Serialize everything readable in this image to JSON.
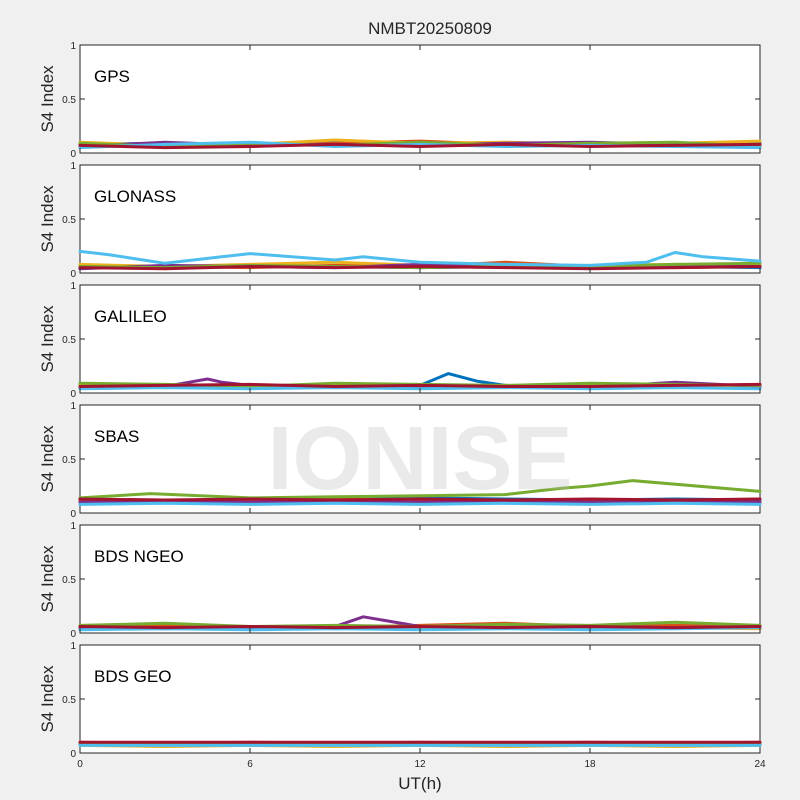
{
  "figure": {
    "title": "NMBT20250809",
    "xlabel": "UT(h)",
    "ylabel": "S4 Index",
    "watermark": "IONISE"
  },
  "colors": [
    "#0072BD",
    "#D95319",
    "#EDB120",
    "#7E2F8E",
    "#77AC30",
    "#4DBEEE",
    "#A2142F"
  ],
  "chart_data": [
    {
      "type": "line",
      "label": "GPS",
      "xlim": [
        0,
        24
      ],
      "ylim": [
        0,
        1
      ],
      "xticks": [
        0,
        6,
        12,
        18,
        24
      ],
      "yticks": [
        0,
        0.5,
        1
      ],
      "series": [
        {
          "x": [
            0,
            3,
            6,
            9,
            12,
            15,
            18,
            21,
            24
          ],
          "y": [
            0.08,
            0.09,
            0.07,
            0.1,
            0.08,
            0.09,
            0.07,
            0.08,
            0.09
          ]
        },
        {
          "x": [
            0,
            3,
            6,
            9,
            12,
            15,
            18,
            21,
            24
          ],
          "y": [
            0.07,
            0.08,
            0.06,
            0.09,
            0.11,
            0.08,
            0.09,
            0.07,
            0.08
          ]
        },
        {
          "x": [
            0,
            3,
            6,
            9,
            12,
            15,
            18,
            21,
            24
          ],
          "y": [
            0.1,
            0.07,
            0.08,
            0.12,
            0.09,
            0.1,
            0.08,
            0.09,
            0.11
          ]
        },
        {
          "x": [
            0,
            3,
            6,
            9,
            12,
            15,
            18,
            21,
            24
          ],
          "y": [
            0.06,
            0.1,
            0.07,
            0.08,
            0.07,
            0.09,
            0.1,
            0.08,
            0.07
          ]
        },
        {
          "x": [
            0,
            3,
            6,
            9,
            12,
            15,
            18,
            21,
            24
          ],
          "y": [
            0.09,
            0.06,
            0.09,
            0.07,
            0.1,
            0.07,
            0.09,
            0.1,
            0.06
          ]
        },
        {
          "x": [
            0,
            3,
            6,
            9,
            12,
            15,
            18,
            21,
            24
          ],
          "y": [
            0.05,
            0.08,
            0.1,
            0.06,
            0.08,
            0.06,
            0.07,
            0.06,
            0.05
          ]
        },
        {
          "x": [
            0,
            3,
            6,
            9,
            12,
            15,
            18,
            21,
            24
          ],
          "y": [
            0.07,
            0.05,
            0.06,
            0.08,
            0.06,
            0.08,
            0.06,
            0.07,
            0.08
          ]
        }
      ]
    },
    {
      "type": "line",
      "label": "GLONASS",
      "xlim": [
        0,
        24
      ],
      "ylim": [
        0,
        1
      ],
      "xticks": [
        0,
        6,
        12,
        18,
        24
      ],
      "yticks": [
        0,
        0.5,
        1
      ],
      "series": [
        {
          "x": [
            0,
            3,
            6,
            9,
            12,
            15,
            18,
            21,
            24
          ],
          "y": [
            0.06,
            0.05,
            0.07,
            0.06,
            0.05,
            0.06,
            0.05,
            0.06,
            0.05
          ]
        },
        {
          "x": [
            0,
            3,
            6,
            9,
            12,
            15,
            18,
            21,
            24
          ],
          "y": [
            0.05,
            0.06,
            0.05,
            0.07,
            0.06,
            0.1,
            0.06,
            0.05,
            0.06
          ]
        },
        {
          "x": [
            0,
            3,
            6,
            9,
            12,
            15,
            18,
            21,
            24
          ],
          "y": [
            0.08,
            0.06,
            0.08,
            0.1,
            0.07,
            0.06,
            0.07,
            0.08,
            0.07
          ]
        },
        {
          "x": [
            0,
            3,
            6,
            9,
            12,
            15,
            18,
            21,
            24
          ],
          "y": [
            0.04,
            0.07,
            0.06,
            0.05,
            0.08,
            0.07,
            0.05,
            0.06,
            0.06
          ]
        },
        {
          "x": [
            0,
            3,
            6,
            9,
            12,
            15,
            18,
            21,
            24
          ],
          "y": [
            0.06,
            0.05,
            0.07,
            0.06,
            0.05,
            0.06,
            0.06,
            0.08,
            0.09
          ]
        },
        {
          "x": [
            0,
            1,
            2,
            3,
            4,
            5,
            6,
            9,
            10,
            12,
            15,
            18,
            20,
            21,
            22,
            24
          ],
          "y": [
            0.2,
            0.17,
            0.13,
            0.09,
            0.12,
            0.15,
            0.18,
            0.12,
            0.15,
            0.1,
            0.08,
            0.07,
            0.1,
            0.19,
            0.15,
            0.11
          ]
        },
        {
          "x": [
            0,
            3,
            6,
            9,
            12,
            15,
            18,
            21,
            24
          ],
          "y": [
            0.05,
            0.04,
            0.06,
            0.05,
            0.06,
            0.05,
            0.04,
            0.05,
            0.06
          ]
        }
      ]
    },
    {
      "type": "line",
      "label": "GALILEO",
      "xlim": [
        0,
        24
      ],
      "ylim": [
        0,
        1
      ],
      "xticks": [
        0,
        6,
        12,
        18,
        24
      ],
      "yticks": [
        0,
        0.5,
        1
      ],
      "series": [
        {
          "x": [
            0,
            3,
            6,
            9,
            12,
            13,
            14,
            15,
            18,
            21,
            24
          ],
          "y": [
            0.08,
            0.06,
            0.07,
            0.06,
            0.07,
            0.18,
            0.11,
            0.07,
            0.06,
            0.07,
            0.06
          ]
        },
        {
          "x": [
            0,
            3,
            6,
            9,
            12,
            15,
            18,
            21,
            24
          ],
          "y": [
            0.06,
            0.07,
            0.05,
            0.08,
            0.06,
            0.05,
            0.08,
            0.06,
            0.08
          ]
        },
        {
          "x": [
            0,
            3,
            6,
            9,
            12,
            15,
            18,
            21,
            24
          ],
          "y": [
            0.07,
            0.05,
            0.06,
            0.07,
            0.05,
            0.06,
            0.07,
            0.05,
            0.07
          ]
        },
        {
          "x": [
            0,
            3,
            4.5,
            5,
            6,
            9,
            12,
            15,
            18,
            21,
            24
          ],
          "y": [
            0.05,
            0.06,
            0.13,
            0.1,
            0.07,
            0.05,
            0.06,
            0.07,
            0.05,
            0.1,
            0.06
          ]
        },
        {
          "x": [
            0,
            3,
            6,
            9,
            12,
            15,
            18,
            21,
            24
          ],
          "y": [
            0.09,
            0.08,
            0.06,
            0.09,
            0.08,
            0.07,
            0.09,
            0.08,
            0.07
          ]
        },
        {
          "x": [
            0,
            3,
            6,
            9,
            12,
            15,
            18,
            21,
            24
          ],
          "y": [
            0.04,
            0.05,
            0.04,
            0.05,
            0.04,
            0.05,
            0.04,
            0.05,
            0.04
          ]
        },
        {
          "x": [
            0,
            3,
            6,
            9,
            12,
            15,
            18,
            21,
            24
          ],
          "y": [
            0.06,
            0.07,
            0.08,
            0.06,
            0.07,
            0.06,
            0.06,
            0.07,
            0.08
          ]
        }
      ]
    },
    {
      "type": "line",
      "label": "SBAS",
      "xlim": [
        0,
        24
      ],
      "ylim": [
        0,
        1
      ],
      "xticks": [
        0,
        6,
        12,
        18,
        24
      ],
      "yticks": [
        0,
        0.5,
        1
      ],
      "series": [
        {
          "x": [
            0,
            3,
            6,
            9,
            12,
            15,
            18,
            21,
            24
          ],
          "y": [
            0.12,
            0.11,
            0.13,
            0.12,
            0.14,
            0.13,
            0.12,
            0.13,
            0.12
          ]
        },
        {
          "x": [
            0,
            3,
            6,
            9,
            12,
            15,
            18,
            21,
            24
          ],
          "y": [
            0.11,
            0.12,
            0.11,
            0.13,
            0.12,
            0.11,
            0.12,
            0.11,
            0.13
          ]
        },
        {
          "x": [
            0,
            3,
            6,
            9,
            12,
            15,
            18,
            21,
            24
          ],
          "y": [
            0.09,
            0.1,
            0.09,
            0.1,
            0.09,
            0.1,
            0.09,
            0.1,
            0.09
          ]
        },
        {
          "x": [
            0,
            3,
            6,
            9,
            12,
            15,
            18,
            21,
            24
          ],
          "y": [
            0.1,
            0.11,
            0.1,
            0.11,
            0.1,
            0.11,
            0.1,
            0.11,
            0.1
          ]
        },
        {
          "x": [
            0,
            2.5,
            6,
            9,
            12,
            15,
            16,
            17,
            18,
            19.5,
            24
          ],
          "y": [
            0.14,
            0.18,
            0.14,
            0.15,
            0.16,
            0.17,
            0.2,
            0.23,
            0.25,
            0.3,
            0.2
          ]
        },
        {
          "x": [
            0,
            3,
            6,
            9,
            12,
            15,
            18,
            21,
            24
          ],
          "y": [
            0.08,
            0.09,
            0.08,
            0.09,
            0.08,
            0.09,
            0.08,
            0.09,
            0.08
          ]
        },
        {
          "x": [
            0,
            3,
            6,
            9,
            12,
            15,
            18,
            21,
            24
          ],
          "y": [
            0.13,
            0.12,
            0.13,
            0.12,
            0.13,
            0.12,
            0.13,
            0.12,
            0.13
          ]
        }
      ]
    },
    {
      "type": "line",
      "label": "BDS NGEO",
      "xlim": [
        0,
        24
      ],
      "ylim": [
        0,
        1
      ],
      "xticks": [
        0,
        6,
        12,
        18,
        24
      ],
      "yticks": [
        0,
        0.5,
        1
      ],
      "series": [
        {
          "x": [
            0,
            3,
            6,
            9,
            12,
            15,
            18,
            21,
            24
          ],
          "y": [
            0.05,
            0.06,
            0.05,
            0.06,
            0.05,
            0.06,
            0.05,
            0.06,
            0.05
          ]
        },
        {
          "x": [
            0,
            3,
            6,
            9,
            12,
            15,
            18,
            21,
            24
          ],
          "y": [
            0.06,
            0.07,
            0.06,
            0.05,
            0.07,
            0.09,
            0.06,
            0.07,
            0.06
          ]
        },
        {
          "x": [
            0,
            3,
            6,
            9,
            12,
            15,
            18,
            21,
            24
          ],
          "y": [
            0.04,
            0.05,
            0.04,
            0.05,
            0.04,
            0.05,
            0.04,
            0.05,
            0.04
          ]
        },
        {
          "x": [
            0,
            3,
            6,
            9,
            10,
            12,
            15,
            18,
            21,
            24
          ],
          "y": [
            0.05,
            0.04,
            0.05,
            0.06,
            0.15,
            0.06,
            0.05,
            0.06,
            0.05,
            0.06
          ]
        },
        {
          "x": [
            0,
            3,
            6,
            9,
            12,
            15,
            18,
            21,
            24
          ],
          "y": [
            0.07,
            0.09,
            0.06,
            0.07,
            0.06,
            0.08,
            0.07,
            0.1,
            0.07
          ]
        },
        {
          "x": [
            0,
            3,
            6,
            9,
            12,
            15,
            18,
            21,
            24
          ],
          "y": [
            0.03,
            0.04,
            0.03,
            0.04,
            0.03,
            0.04,
            0.03,
            0.04,
            0.05
          ]
        },
        {
          "x": [
            0,
            3,
            6,
            9,
            12,
            15,
            18,
            21,
            24
          ],
          "y": [
            0.06,
            0.05,
            0.06,
            0.05,
            0.06,
            0.05,
            0.06,
            0.05,
            0.06
          ]
        }
      ]
    },
    {
      "type": "line",
      "label": "BDS GEO",
      "xlim": [
        0,
        24
      ],
      "ylim": [
        0,
        1
      ],
      "xticks": [
        0,
        6,
        12,
        18,
        24
      ],
      "yticks": [
        0,
        0.5,
        1
      ],
      "series": [
        {
          "x": [
            0,
            3,
            6,
            9,
            12,
            15,
            18,
            21,
            24
          ],
          "y": [
            0.09,
            0.08,
            0.09,
            0.08,
            0.09,
            0.08,
            0.09,
            0.08,
            0.09
          ]
        },
        {
          "x": [
            0,
            3,
            6,
            9,
            12,
            15,
            18,
            21,
            24
          ],
          "y": [
            0.1,
            0.09,
            0.1,
            0.09,
            0.1,
            0.09,
            0.1,
            0.09,
            0.1
          ]
        },
        {
          "x": [
            0,
            3,
            6,
            9,
            12,
            15,
            18,
            21,
            24
          ],
          "y": [
            0.07,
            0.06,
            0.07,
            0.06,
            0.07,
            0.06,
            0.07,
            0.06,
            0.07
          ]
        },
        {
          "x": [
            0,
            3,
            6,
            9,
            12,
            15,
            18,
            21,
            24
          ],
          "y": [
            0.08,
            0.08,
            0.08,
            0.08,
            0.08,
            0.08,
            0.08,
            0.08,
            0.08
          ]
        },
        {
          "x": [
            0,
            3,
            6,
            9,
            12,
            15,
            18,
            21,
            24
          ],
          "y": [
            0.09,
            0.09,
            0.09,
            0.09,
            0.09,
            0.09,
            0.09,
            0.09,
            0.09
          ]
        },
        {
          "x": [
            0,
            3,
            6,
            9,
            12,
            15,
            18,
            21,
            24
          ],
          "y": [
            0.07,
            0.07,
            0.07,
            0.07,
            0.07,
            0.07,
            0.07,
            0.07,
            0.07
          ]
        },
        {
          "x": [
            0,
            3,
            6,
            9,
            12,
            15,
            18,
            21,
            24
          ],
          "y": [
            0.1,
            0.1,
            0.1,
            0.1,
            0.1,
            0.1,
            0.1,
            0.1,
            0.1
          ]
        }
      ]
    }
  ]
}
